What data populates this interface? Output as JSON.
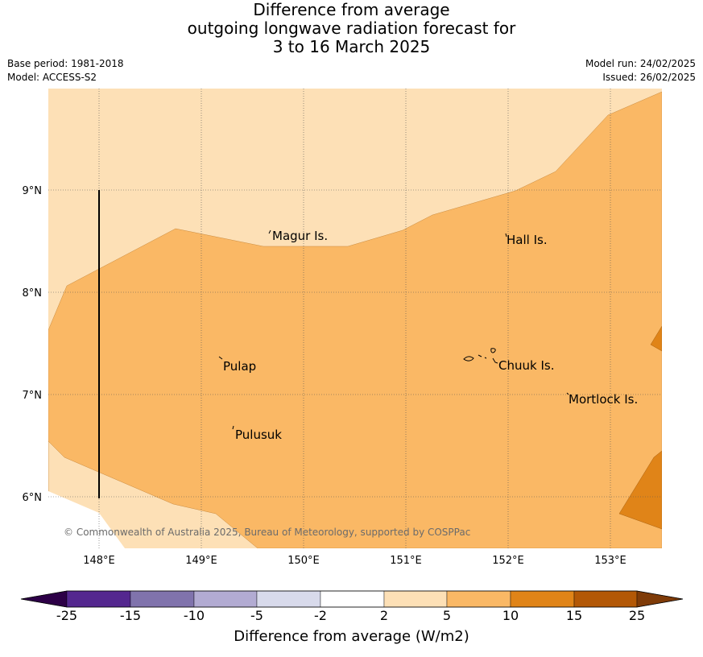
{
  "header": {
    "title_line1": "Difference from average",
    "title_line2": "outgoing longwave radiation forecast for",
    "title_line3": "3 to 16 March 2025",
    "base_period": "Base period: 1981-2018",
    "model": "Model: ACCESS-S2",
    "model_run": "Model run: 24/02/2025",
    "issued": "Issued: 26/02/2025"
  },
  "map": {
    "lon_ticks": [
      "148°E",
      "149°E",
      "150°E",
      "151°E",
      "152°E",
      "153°E"
    ],
    "lat_ticks": [
      "9°N",
      "8°N",
      "7°N",
      "6°N"
    ],
    "places": [
      "Magur Is.",
      "Hall Is.",
      "Pulap",
      "Chuuk Is.",
      "Mortlock Is.",
      "Pulusuk"
    ],
    "copyright": "© Commonwealth of Australia 2025, Bureau of Meteorology, supported by COSPPac",
    "colors": {
      "band_2_5": "#fde0b6",
      "band_5_10": "#fab865",
      "band_10_15": "#e08418"
    }
  },
  "colorbar": {
    "labels": [
      "-25",
      "-15",
      "-10",
      "-5",
      "-2",
      "2",
      "5",
      "10",
      "15",
      "25"
    ],
    "colors": [
      "#2d0047",
      "#54278f",
      "#8073ac",
      "#b2abd2",
      "#d8daeb",
      "#ffffff",
      "#fde0b6",
      "#fab865",
      "#e08418",
      "#b35806",
      "#7f3b08"
    ],
    "title": "Difference from average (W/m2)"
  }
}
